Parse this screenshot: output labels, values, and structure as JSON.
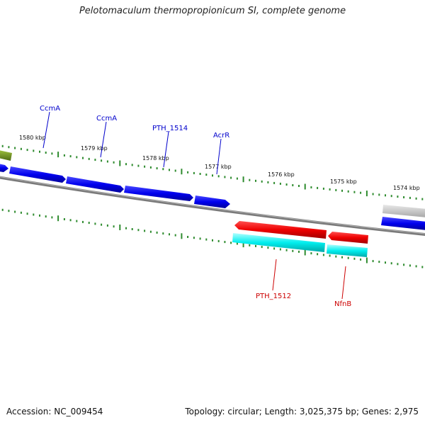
{
  "title": "Pelotomaculum thermopropionicum SI, complete genome",
  "footer": {
    "accession": "Accession: NC_009454",
    "topology": "Topology: circular; Length: 3,025,375 bp; Genes: 2,975"
  },
  "colors": {
    "forward_gene": "#0000ee",
    "reverse_gene": "#ee0000",
    "reverse_cds": "#00eeee",
    "olive_gene": "#6b8e23",
    "gray_gene": "#c0c0c0",
    "backbone": "#888888",
    "tick": "#2e8b2e",
    "forward_label": "#0000cc",
    "reverse_label": "#cc0000"
  },
  "scale_labels": [
    "1580 kbp",
    "1579 kbp",
    "1578 kbp",
    "1577 kbp",
    "1576 kbp",
    "1575 kbp",
    "1574 kbp"
  ],
  "gene_labels": {
    "forward": [
      "CcmA",
      "CcmA",
      "PTH_1514",
      "AcrR"
    ],
    "reverse": [
      "PTH_1512",
      "NfnB"
    ]
  }
}
